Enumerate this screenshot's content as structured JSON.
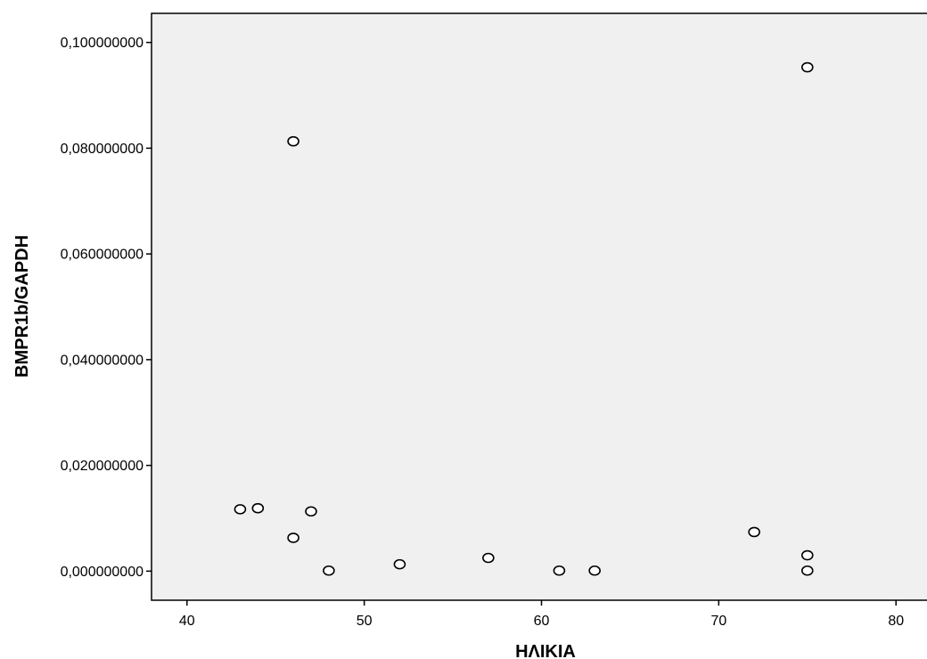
{
  "chart_data": {
    "type": "scatter",
    "title": "",
    "xlabel": "ΗΛΙΚΙΑ",
    "ylabel": "BMPR1b/GAPDH",
    "xlim": [
      38,
      82
    ],
    "ylim": [
      -0.0055,
      0.1055
    ],
    "xticks": [
      40,
      50,
      60,
      70,
      80
    ],
    "xtick_labels": [
      "40",
      "50",
      "60",
      "70",
      "80"
    ],
    "yticks": [
      0.0,
      0.02,
      0.04,
      0.06,
      0.08,
      0.1
    ],
    "ytick_labels": [
      "0,000000000",
      "0,020000000",
      "0,040000000",
      "0,060000000",
      "0,080000000",
      "0,100000000"
    ],
    "grid": false,
    "legend": "none",
    "colors": {
      "plot_background": "#f0f0f0",
      "marker_stroke": "#000000",
      "marker_fill": "#ffffff"
    },
    "points": [
      {
        "x": 43,
        "y": 0.0117
      },
      {
        "x": 44,
        "y": 0.0119
      },
      {
        "x": 46,
        "y": 0.0813
      },
      {
        "x": 46,
        "y": 0.0063
      },
      {
        "x": 47,
        "y": 0.0113
      },
      {
        "x": 48,
        "y": 0.0001
      },
      {
        "x": 52,
        "y": 0.0013
      },
      {
        "x": 57,
        "y": 0.0025
      },
      {
        "x": 61,
        "y": 0.0001
      },
      {
        "x": 63,
        "y": 0.0001
      },
      {
        "x": 72,
        "y": 0.0074
      },
      {
        "x": 75,
        "y": 0.0953
      },
      {
        "x": 75,
        "y": 0.003
      },
      {
        "x": 75,
        "y": 0.0001
      }
    ]
  }
}
